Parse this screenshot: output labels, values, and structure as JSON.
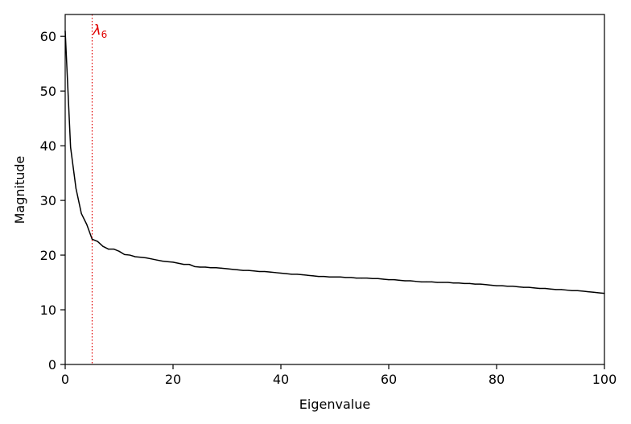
{
  "chart_data": {
    "type": "line",
    "title": "",
    "xlabel": "Eigenvalue",
    "ylabel": "Magnitude",
    "xlim": [
      0,
      100
    ],
    "ylim": [
      0,
      64
    ],
    "xticks": [
      0,
      20,
      40,
      60,
      80,
      100
    ],
    "yticks": [
      0,
      10,
      20,
      30,
      40,
      50,
      60
    ],
    "grid": false,
    "legend": "none",
    "line_color": "#000000",
    "series": [
      {
        "color": "#000000",
        "x": [
          0,
          1,
          2,
          3,
          4,
          5,
          6,
          7,
          8,
          9,
          10,
          11,
          12,
          13,
          14,
          15,
          16,
          17,
          18,
          19,
          20,
          21,
          22,
          23,
          24,
          25,
          26,
          27,
          28,
          29,
          30,
          31,
          32,
          33,
          34,
          35,
          36,
          37,
          38,
          39,
          40,
          41,
          42,
          43,
          44,
          45,
          46,
          47,
          48,
          49,
          50,
          51,
          52,
          53,
          54,
          55,
          56,
          57,
          58,
          59,
          60,
          61,
          62,
          63,
          64,
          65,
          66,
          67,
          68,
          69,
          70,
          71,
          72,
          73,
          74,
          75,
          76,
          77,
          78,
          79,
          80,
          81,
          82,
          83,
          84,
          85,
          86,
          87,
          88,
          89,
          90,
          91,
          92,
          93,
          94,
          95,
          96,
          97,
          98,
          99,
          100
        ],
        "y": [
          61.0,
          39.7,
          32.2,
          27.6,
          25.6,
          22.9,
          22.5,
          21.6,
          21.1,
          21.1,
          20.7,
          20.1,
          20.0,
          19.7,
          19.6,
          19.5,
          19.3,
          19.1,
          18.9,
          18.8,
          18.7,
          18.5,
          18.3,
          18.3,
          17.9,
          17.8,
          17.8,
          17.7,
          17.7,
          17.6,
          17.5,
          17.4,
          17.3,
          17.2,
          17.2,
          17.1,
          17.0,
          17.0,
          16.9,
          16.8,
          16.7,
          16.6,
          16.5,
          16.5,
          16.4,
          16.3,
          16.2,
          16.1,
          16.1,
          16.0,
          16.0,
          16.0,
          15.9,
          15.9,
          15.8,
          15.8,
          15.8,
          15.7,
          15.7,
          15.6,
          15.5,
          15.5,
          15.4,
          15.3,
          15.3,
          15.2,
          15.1,
          15.1,
          15.1,
          15.0,
          15.0,
          15.0,
          14.9,
          14.9,
          14.8,
          14.8,
          14.7,
          14.7,
          14.6,
          14.5,
          14.4,
          14.4,
          14.3,
          14.3,
          14.2,
          14.1,
          14.1,
          14.0,
          13.9,
          13.9,
          13.8,
          13.7,
          13.7,
          13.6,
          13.5,
          13.5,
          13.4,
          13.3,
          13.2,
          13.1,
          13.0
        ]
      }
    ],
    "annotations": [
      {
        "label": "λ",
        "subscript": "6",
        "x": 5,
        "color": "#e00000",
        "linestyle": "dotted"
      }
    ]
  }
}
